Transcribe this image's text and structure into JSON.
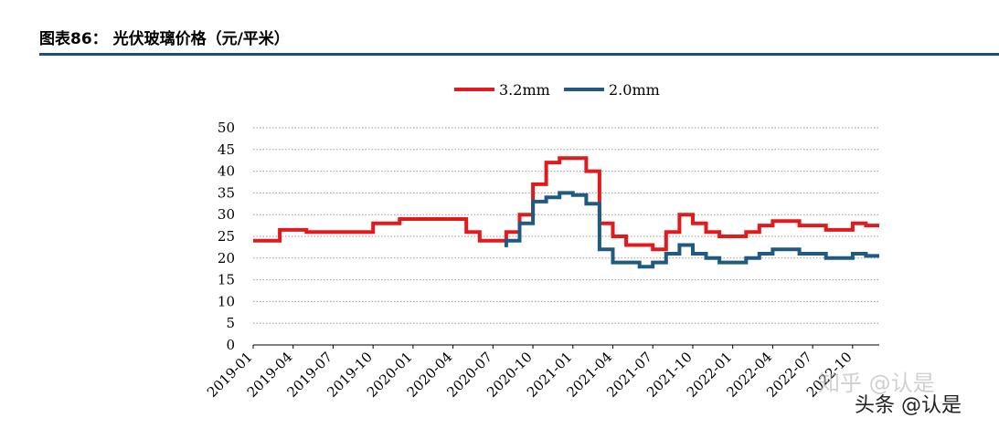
{
  "header": {
    "title": "图表86：   光伏玻璃价格（元/平米）"
  },
  "watermark": {
    "faded": "知乎 @认是",
    "main": "头条 @认是"
  },
  "chart_data": {
    "type": "line",
    "title": "",
    "xlabel": "",
    "ylabel": "",
    "ylim": [
      0,
      50
    ],
    "yticks": [
      0,
      5,
      10,
      15,
      20,
      25,
      30,
      35,
      40,
      45,
      50
    ],
    "xticks": [
      "2019-01",
      "2019-04",
      "2019-07",
      "2019-10",
      "2020-01",
      "2020-04",
      "2020-07",
      "2020-10",
      "2021-01",
      "2021-04",
      "2021-07",
      "2021-10",
      "2022-01",
      "2022-04",
      "2022-07",
      "2022-10"
    ],
    "x_range_months": [
      "2019-01",
      "2022-12"
    ],
    "grid": "horizontal dashed",
    "legend_position": "top-center",
    "series": [
      {
        "name": "3.2mm",
        "color": "#e31a1c",
        "points": [
          [
            "2019-01",
            24
          ],
          [
            "2019-03",
            24
          ],
          [
            "2019-03",
            26.5
          ],
          [
            "2019-05",
            26.5
          ],
          [
            "2019-05",
            26
          ],
          [
            "2019-10",
            26
          ],
          [
            "2019-10",
            28
          ],
          [
            "2019-12",
            28
          ],
          [
            "2019-12",
            29
          ],
          [
            "2020-05",
            29
          ],
          [
            "2020-05",
            26
          ],
          [
            "2020-06",
            26
          ],
          [
            "2020-06",
            24
          ],
          [
            "2020-08",
            24
          ],
          [
            "2020-08",
            26
          ],
          [
            "2020-09",
            26
          ],
          [
            "2020-09",
            30
          ],
          [
            "2020-10",
            30
          ],
          [
            "2020-10",
            37
          ],
          [
            "2020-11",
            37
          ],
          [
            "2020-11",
            42
          ],
          [
            "2020-12",
            42
          ],
          [
            "2020-12",
            43
          ],
          [
            "2021-02",
            43
          ],
          [
            "2021-02",
            40
          ],
          [
            "2021-03",
            40
          ],
          [
            "2021-03",
            28
          ],
          [
            "2021-04",
            28
          ],
          [
            "2021-04",
            25
          ],
          [
            "2021-05",
            25
          ],
          [
            "2021-05",
            23
          ],
          [
            "2021-06",
            23
          ],
          [
            "2021-07",
            23
          ],
          [
            "2021-07",
            22
          ],
          [
            "2021-08",
            22
          ],
          [
            "2021-08",
            26
          ],
          [
            "2021-09",
            26
          ],
          [
            "2021-09",
            30
          ],
          [
            "2021-10",
            30
          ],
          [
            "2021-10",
            28
          ],
          [
            "2021-11",
            28
          ],
          [
            "2021-11",
            26
          ],
          [
            "2021-12",
            26
          ],
          [
            "2021-12",
            25
          ],
          [
            "2022-02",
            25
          ],
          [
            "2022-02",
            26
          ],
          [
            "2022-03",
            26
          ],
          [
            "2022-03",
            27.5
          ],
          [
            "2022-04",
            27.5
          ],
          [
            "2022-04",
            28.5
          ],
          [
            "2022-06",
            28.5
          ],
          [
            "2022-06",
            27.5
          ],
          [
            "2022-08",
            27.5
          ],
          [
            "2022-08",
            26.5
          ],
          [
            "2022-10",
            26.5
          ],
          [
            "2022-10",
            28
          ],
          [
            "2022-11",
            28
          ],
          [
            "2022-11",
            27.5
          ],
          [
            "2022-12",
            27.5
          ]
        ]
      },
      {
        "name": "2.0mm",
        "color": "#1f5a82",
        "points": [
          [
            "2020-08",
            22.5
          ],
          [
            "2020-08",
            24
          ],
          [
            "2020-09",
            24
          ],
          [
            "2020-09",
            28
          ],
          [
            "2020-10",
            28
          ],
          [
            "2020-10",
            33
          ],
          [
            "2020-11",
            33
          ],
          [
            "2020-11",
            34
          ],
          [
            "2020-12",
            34
          ],
          [
            "2020-12",
            35
          ],
          [
            "2021-01",
            35
          ],
          [
            "2021-01",
            34.5
          ],
          [
            "2021-02",
            34.5
          ],
          [
            "2021-02",
            32.5
          ],
          [
            "2021-03",
            32.5
          ],
          [
            "2021-03",
            22
          ],
          [
            "2021-04",
            22
          ],
          [
            "2021-04",
            19
          ],
          [
            "2021-06",
            19
          ],
          [
            "2021-06",
            18
          ],
          [
            "2021-07",
            18
          ],
          [
            "2021-07",
            19
          ],
          [
            "2021-08",
            19
          ],
          [
            "2021-08",
            21
          ],
          [
            "2021-09",
            21
          ],
          [
            "2021-09",
            23
          ],
          [
            "2021-10",
            23
          ],
          [
            "2021-10",
            21
          ],
          [
            "2021-11",
            21
          ],
          [
            "2021-11",
            20
          ],
          [
            "2021-12",
            20
          ],
          [
            "2021-12",
            19
          ],
          [
            "2022-02",
            19
          ],
          [
            "2022-02",
            20
          ],
          [
            "2022-03",
            20
          ],
          [
            "2022-03",
            21
          ],
          [
            "2022-04",
            21
          ],
          [
            "2022-04",
            22
          ],
          [
            "2022-06",
            22
          ],
          [
            "2022-06",
            21
          ],
          [
            "2022-08",
            21
          ],
          [
            "2022-08",
            20
          ],
          [
            "2022-10",
            20
          ],
          [
            "2022-10",
            21
          ],
          [
            "2022-11",
            21
          ],
          [
            "2022-11",
            20.5
          ],
          [
            "2022-12",
            20.5
          ]
        ]
      }
    ]
  }
}
